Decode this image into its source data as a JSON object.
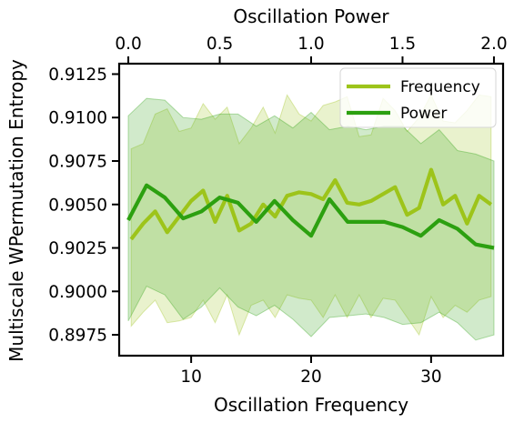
{
  "chart_data": {
    "type": "line",
    "xlabel": "Oscillation Frequency",
    "ylabel": "Multiscale WPermutation Entropy",
    "x2label": "Oscillation Power",
    "xlim": [
      4,
      36
    ],
    "x2lim": [
      -0.05,
      2.05
    ],
    "ylim": [
      0.8963,
      0.9131
    ],
    "x_ticks": [
      10,
      20,
      30
    ],
    "x_tick_labels": [
      "10",
      "20",
      "30"
    ],
    "x2_ticks": [
      0.0,
      0.5,
      1.0,
      1.5,
      2.0
    ],
    "x2_tick_labels": [
      "0.0",
      "0.5",
      "1.0",
      "1.5",
      "2.0"
    ],
    "y_ticks": [
      0.8975,
      0.9,
      0.9025,
      0.905,
      0.9075,
      0.91,
      0.9125
    ],
    "y_tick_labels": [
      "0.8975",
      "0.9000",
      "0.9025",
      "0.9050",
      "0.9075",
      "0.9100",
      "0.9125"
    ],
    "legend": {
      "position": "top-right"
    },
    "series": [
      {
        "name": "Frequency",
        "axis": "bottom",
        "color": "#9dc41a",
        "x": [
          5,
          6,
          7,
          8,
          9,
          10,
          11,
          12,
          13,
          14,
          15,
          16,
          17,
          18,
          19,
          20,
          21,
          22,
          23,
          24,
          25,
          26,
          27,
          28,
          29,
          30,
          31,
          32,
          33,
          34,
          35
        ],
        "y": [
          0.903,
          0.9039,
          0.9046,
          0.9034,
          0.9043,
          0.9052,
          0.9058,
          0.904,
          0.9055,
          0.9035,
          0.9039,
          0.905,
          0.9043,
          0.9055,
          0.9057,
          0.9056,
          0.9053,
          0.9064,
          0.9051,
          0.905,
          0.9052,
          0.9056,
          0.906,
          0.9044,
          0.9048,
          0.907,
          0.905,
          0.9055,
          0.9039,
          0.9055,
          0.905
        ],
        "upper": [
          0.9082,
          0.9085,
          0.9102,
          0.9105,
          0.9092,
          0.9094,
          0.9108,
          0.9099,
          0.9106,
          0.9085,
          0.9094,
          0.9106,
          0.9091,
          0.9113,
          0.9102,
          0.9098,
          0.9107,
          0.9109,
          0.9112,
          0.9089,
          0.909,
          0.9111,
          0.9104,
          0.9092,
          0.91,
          0.9113,
          0.9098,
          0.9097,
          0.9104,
          0.9113,
          0.9112
        ],
        "lower": [
          0.898,
          0.8988,
          0.8995,
          0.8982,
          0.8983,
          0.8985,
          0.8995,
          0.8982,
          0.8998,
          0.8975,
          0.8992,
          0.8995,
          0.8985,
          0.8998,
          0.8996,
          0.8995,
          0.8985,
          0.8998,
          0.8985,
          0.8998,
          0.8985,
          0.8996,
          0.8995,
          0.8985,
          0.8975,
          0.8997,
          0.8985,
          0.8992,
          0.8988,
          0.8995,
          0.8997
        ]
      },
      {
        "name": "Power",
        "axis": "top",
        "color": "#2ca010",
        "x": [
          0.0,
          0.1,
          0.2,
          0.3,
          0.4,
          0.5,
          0.6,
          0.7,
          0.8,
          0.9,
          1.0,
          1.1,
          1.2,
          1.3,
          1.4,
          1.5,
          1.6,
          1.7,
          1.8,
          1.9,
          2.0
        ],
        "y": [
          0.9041,
          0.9061,
          0.9054,
          0.9042,
          0.9046,
          0.9054,
          0.9051,
          0.904,
          0.9052,
          0.9041,
          0.9032,
          0.9053,
          0.904,
          0.904,
          0.904,
          0.9037,
          0.9032,
          0.9041,
          0.9036,
          0.9027,
          0.9025
        ],
        "upper": [
          0.9101,
          0.9111,
          0.911,
          0.91,
          0.9099,
          0.9102,
          0.9102,
          0.9095,
          0.9101,
          0.9094,
          0.9103,
          0.9093,
          0.9095,
          0.9093,
          0.9095,
          0.9095,
          0.9085,
          0.9093,
          0.9081,
          0.9079,
          0.9075
        ],
        "lower": [
          0.8983,
          0.9003,
          0.8998,
          0.8984,
          0.8991,
          0.9002,
          0.8991,
          0.8986,
          0.8992,
          0.8984,
          0.8974,
          0.8985,
          0.8986,
          0.8987,
          0.8985,
          0.8981,
          0.8982,
          0.8988,
          0.8982,
          0.8972,
          0.8975
        ]
      }
    ]
  }
}
